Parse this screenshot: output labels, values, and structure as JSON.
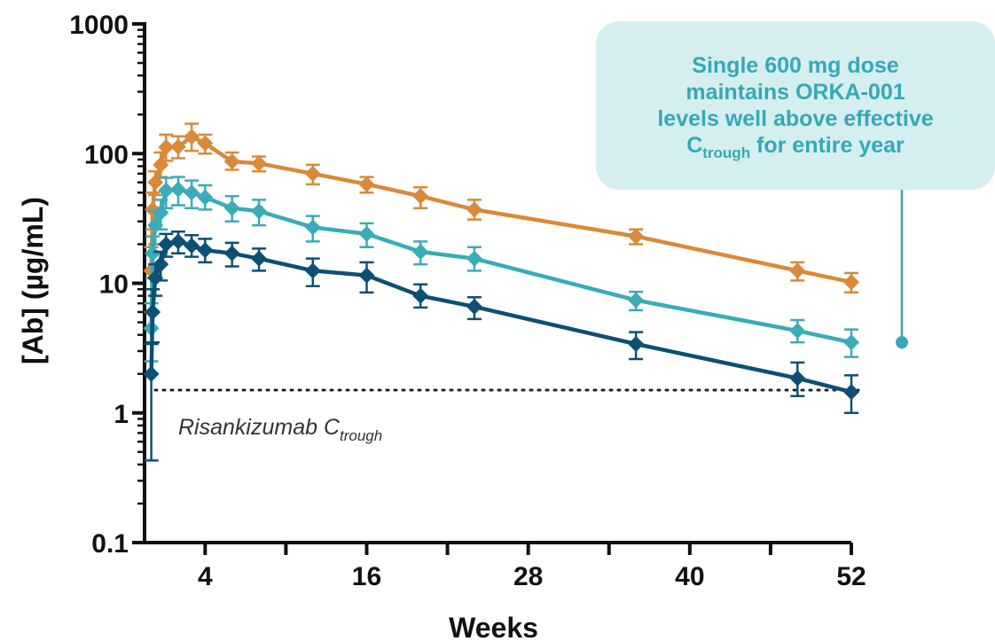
{
  "chart_data": {
    "type": "line",
    "xlabel": "Weeks",
    "ylabel": "[Ab] (µg/mL)",
    "y_scale": "log",
    "ylim": [
      0.1,
      1000
    ],
    "xlim": [
      -0.5,
      52
    ],
    "x_ticks": [
      4,
      16,
      28,
      40,
      52
    ],
    "y_ticks": [
      0.1,
      1,
      10,
      100,
      1000
    ],
    "y_tick_labels": [
      "0.1",
      "1",
      "10",
      "100",
      "1000"
    ],
    "grid": false,
    "series": [
      {
        "color": "#d9893a",
        "points": [
          {
            "x": 0.0,
            "y": 12.5,
            "lo": 6,
            "hi": 19
          },
          {
            "x": 0.1,
            "y": 37,
            "lo": 26,
            "hi": 50
          },
          {
            "x": 0.3,
            "y": 60,
            "lo": 48,
            "hi": 73
          },
          {
            "x": 0.7,
            "y": 82,
            "lo": 66,
            "hi": 102
          },
          {
            "x": 1.1,
            "y": 112,
            "lo": 88,
            "hi": 140
          },
          {
            "x": 2.0,
            "y": 113,
            "lo": 92,
            "hi": 136
          },
          {
            "x": 3.0,
            "y": 135,
            "lo": 105,
            "hi": 170
          },
          {
            "x": 4.0,
            "y": 120,
            "lo": 100,
            "hi": 140
          },
          {
            "x": 6.0,
            "y": 87,
            "lo": 75,
            "hi": 102
          },
          {
            "x": 8.0,
            "y": 84,
            "lo": 73,
            "hi": 95
          },
          {
            "x": 12.0,
            "y": 70,
            "lo": 58,
            "hi": 82
          },
          {
            "x": 16.0,
            "y": 58,
            "lo": 50,
            "hi": 66
          },
          {
            "x": 20.0,
            "y": 47,
            "lo": 38,
            "hi": 55
          },
          {
            "x": 24.0,
            "y": 37,
            "lo": 31,
            "hi": 44
          },
          {
            "x": 36.0,
            "y": 23,
            "lo": 20,
            "hi": 26
          },
          {
            "x": 48.0,
            "y": 12.5,
            "lo": 10.5,
            "hi": 14.5
          },
          {
            "x": 52.0,
            "y": 10.2,
            "lo": 8.5,
            "hi": 12
          }
        ]
      },
      {
        "color": "#3aabb8",
        "points": [
          {
            "x": 0.0,
            "y": 4.5,
            "lo": 2.5,
            "hi": 7
          },
          {
            "x": 0.1,
            "y": 17,
            "lo": 11,
            "hi": 23
          },
          {
            "x": 0.3,
            "y": 28,
            "lo": 20,
            "hi": 36
          },
          {
            "x": 0.7,
            "y": 35,
            "lo": 26,
            "hi": 44
          },
          {
            "x": 1.1,
            "y": 52,
            "lo": 38,
            "hi": 65
          },
          {
            "x": 2.0,
            "y": 53,
            "lo": 40,
            "hi": 66
          },
          {
            "x": 3.0,
            "y": 50,
            "lo": 38,
            "hi": 62
          },
          {
            "x": 4.0,
            "y": 46,
            "lo": 37,
            "hi": 57
          },
          {
            "x": 6.0,
            "y": 38,
            "lo": 30,
            "hi": 47
          },
          {
            "x": 8.0,
            "y": 36,
            "lo": 28,
            "hi": 44
          },
          {
            "x": 12.0,
            "y": 27,
            "lo": 21,
            "hi": 33
          },
          {
            "x": 16.0,
            "y": 24,
            "lo": 19,
            "hi": 29
          },
          {
            "x": 20.0,
            "y": 17.5,
            "lo": 14,
            "hi": 21
          },
          {
            "x": 24.0,
            "y": 15.5,
            "lo": 12.5,
            "hi": 19
          },
          {
            "x": 36.0,
            "y": 7.4,
            "lo": 6.2,
            "hi": 8.6
          },
          {
            "x": 48.0,
            "y": 4.3,
            "lo": 3.5,
            "hi": 5.2
          },
          {
            "x": 52.0,
            "y": 3.5,
            "lo": 2.7,
            "hi": 4.4
          }
        ]
      },
      {
        "color": "#0e4f74",
        "points": [
          {
            "x": 0.0,
            "y": 2.0,
            "lo": 0.43,
            "hi": 3.4
          },
          {
            "x": 0.1,
            "y": 6.0,
            "lo": 3.5,
            "hi": 9
          },
          {
            "x": 0.3,
            "y": 11,
            "lo": 8,
            "hi": 14
          },
          {
            "x": 0.7,
            "y": 14,
            "lo": 10.5,
            "hi": 17.5
          },
          {
            "x": 1.1,
            "y": 20,
            "lo": 16,
            "hi": 24
          },
          {
            "x": 2.0,
            "y": 21,
            "lo": 17,
            "hi": 25
          },
          {
            "x": 3.0,
            "y": 19.5,
            "lo": 16,
            "hi": 23.5
          },
          {
            "x": 4.0,
            "y": 18,
            "lo": 14.5,
            "hi": 22
          },
          {
            "x": 6.0,
            "y": 17,
            "lo": 13.5,
            "hi": 20.5
          },
          {
            "x": 8.0,
            "y": 15.5,
            "lo": 12.5,
            "hi": 18.5
          },
          {
            "x": 12.0,
            "y": 12.5,
            "lo": 9.5,
            "hi": 15.5
          },
          {
            "x": 16.0,
            "y": 11.5,
            "lo": 8.5,
            "hi": 14.5
          },
          {
            "x": 20.0,
            "y": 8.0,
            "lo": 6.5,
            "hi": 9.8
          },
          {
            "x": 24.0,
            "y": 6.6,
            "lo": 5.3,
            "hi": 7.8
          },
          {
            "x": 36.0,
            "y": 3.4,
            "lo": 2.6,
            "hi": 4.2
          },
          {
            "x": 48.0,
            "y": 1.85,
            "lo": 1.35,
            "hi": 2.45
          },
          {
            "x": 52.0,
            "y": 1.45,
            "lo": 1.0,
            "hi": 1.95
          }
        ]
      }
    ],
    "reference_line": {
      "y": 1.5,
      "style": "dotted",
      "color": "#222222",
      "label_main": "Risankizumab C",
      "label_sub": "trough"
    },
    "annotation": {
      "line1": "Single 600 mg dose",
      "line2": "maintains ORKA-001",
      "line3": "levels well above effective",
      "line4_main": "C",
      "line4_sub": "trough",
      "line4_rest": " for entire year",
      "color": "#35a9b5",
      "background": "#d5eef0",
      "pointer_target_y": 3.5
    }
  }
}
